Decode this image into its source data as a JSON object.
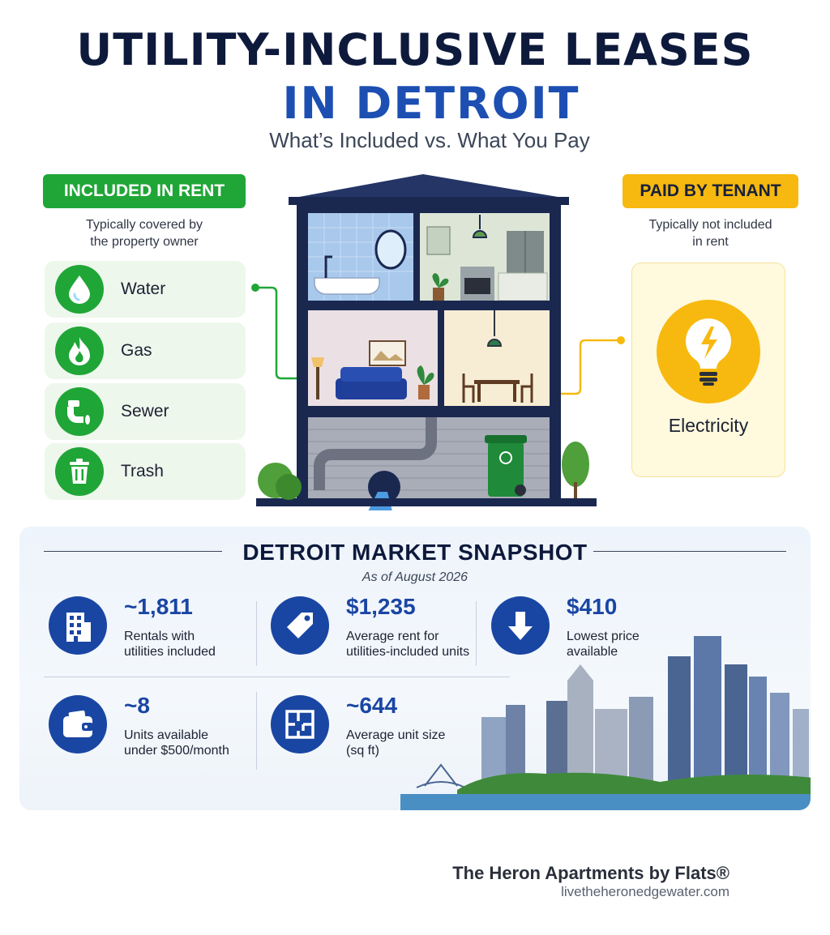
{
  "header": {
    "title_line1": "UTILITY-INCLUSIVE LEASES",
    "title_line2": "IN DETROIT",
    "subtitle": "What’s Included vs. What You Pay"
  },
  "included": {
    "badge": "INCLUDED IN RENT",
    "note_line1": "Typically covered by",
    "note_line2": "the property owner",
    "items": [
      {
        "label": "Water",
        "icon": "water-drop-icon"
      },
      {
        "label": "Gas",
        "icon": "flame-icon"
      },
      {
        "label": "Sewer",
        "icon": "pipe-icon"
      },
      {
        "label": "Trash",
        "icon": "trash-can-icon"
      }
    ],
    "color": "#1fa637"
  },
  "paid": {
    "badge": "PAID BY TENANT",
    "note_line1": "Typically not included",
    "note_line2": "in rent",
    "items": [
      {
        "label": "Electricity",
        "icon": "lightbulb-icon"
      }
    ],
    "color": "#f7b90f"
  },
  "snapshot": {
    "title": "DETROIT MARKET SNAPSHOT",
    "date": "As of August 2026",
    "stats": [
      {
        "value": "~1,811",
        "desc_line1": "Rentals with",
        "desc_line2": "utilities included",
        "icon": "building-icon"
      },
      {
        "value": "$1,235",
        "desc_line1": "Average rent for",
        "desc_line2": "utilities-included units",
        "icon": "price-tag-icon"
      },
      {
        "value": "$410",
        "desc_line1": "Lowest price",
        "desc_line2": "available",
        "icon": "arrow-down-icon"
      },
      {
        "value": "~8",
        "desc_line1": "Units available",
        "desc_line2": "under $500/month",
        "icon": "wallet-icon"
      },
      {
        "value": "~644",
        "desc_line1": "Average unit size",
        "desc_line2": "(sq ft)",
        "icon": "floor-plan-icon"
      }
    ],
    "accent": "#1a46a3"
  },
  "footer": {
    "brand": "The Heron Apartments by Flats®",
    "url": "livetheheronedgewater.com"
  }
}
